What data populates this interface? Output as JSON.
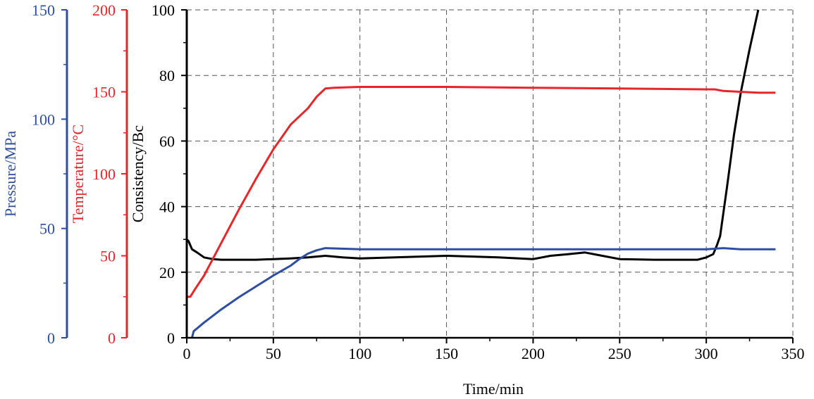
{
  "chart_data": {
    "type": "line",
    "xlabel": "Time/min",
    "xlim": [
      0,
      350
    ],
    "x_ticks": [
      "0",
      "50",
      "100",
      "150",
      "200",
      "250",
      "300",
      "350"
    ],
    "grid": true,
    "legend": "none",
    "axes": [
      {
        "id": "consistency",
        "label": "Consistency/Bc",
        "color": "#000000",
        "lim": [
          0,
          100
        ],
        "ticks": [
          "0",
          "20",
          "40",
          "60",
          "80",
          "100"
        ]
      },
      {
        "id": "temperature",
        "label": "Temperature/°C",
        "color": "#e8262a",
        "lim": [
          0,
          200
        ],
        "ticks": [
          "0",
          "50",
          "100",
          "150",
          "200"
        ]
      },
      {
        "id": "pressure",
        "label": "Pressure/MPa",
        "color": "#2d4ea3",
        "lim": [
          0,
          150
        ],
        "ticks": [
          "0",
          "50",
          "100",
          "150"
        ]
      }
    ],
    "series": [
      {
        "axis": "consistency",
        "color": "#000000",
        "points": [
          [
            0,
            30
          ],
          [
            1,
            29.5
          ],
          [
            3,
            27
          ],
          [
            6,
            26
          ],
          [
            10,
            24.5
          ],
          [
            15,
            24
          ],
          [
            20,
            23.8
          ],
          [
            30,
            23.8
          ],
          [
            40,
            23.8
          ],
          [
            50,
            24
          ],
          [
            60,
            24.2
          ],
          [
            70,
            24.5
          ],
          [
            80,
            25
          ],
          [
            90,
            24.5
          ],
          [
            100,
            24.2
          ],
          [
            120,
            24.5
          ],
          [
            150,
            25
          ],
          [
            180,
            24.5
          ],
          [
            200,
            24
          ],
          [
            210,
            25
          ],
          [
            220,
            25.5
          ],
          [
            230,
            26
          ],
          [
            240,
            25
          ],
          [
            250,
            24
          ],
          [
            270,
            23.8
          ],
          [
            295,
            23.8
          ],
          [
            300,
            24.5
          ],
          [
            304,
            25.5
          ],
          [
            306,
            28
          ],
          [
            308,
            31
          ],
          [
            312,
            46
          ],
          [
            316,
            62
          ],
          [
            320,
            75
          ],
          [
            325,
            88
          ],
          [
            330,
            100
          ]
        ]
      },
      {
        "axis": "temperature",
        "color": "#e8262a",
        "points": [
          [
            0,
            25
          ],
          [
            2,
            25
          ],
          [
            5,
            30
          ],
          [
            10,
            38
          ],
          [
            20,
            58
          ],
          [
            30,
            78
          ],
          [
            40,
            97
          ],
          [
            50,
            115
          ],
          [
            60,
            130
          ],
          [
            65,
            135
          ],
          [
            70,
            140
          ],
          [
            75,
            147
          ],
          [
            80,
            152
          ],
          [
            85,
            152.5
          ],
          [
            100,
            153
          ],
          [
            150,
            153
          ],
          [
            200,
            152.5
          ],
          [
            250,
            152
          ],
          [
            300,
            151.5
          ],
          [
            305,
            151.5
          ],
          [
            310,
            150.5
          ],
          [
            320,
            150
          ],
          [
            330,
            149.5
          ],
          [
            340,
            149.5
          ]
        ]
      },
      {
        "axis": "pressure",
        "color": "#2d4ea3",
        "points": [
          [
            3,
            0
          ],
          [
            4,
            3
          ],
          [
            10,
            7
          ],
          [
            20,
            13
          ],
          [
            30,
            18.5
          ],
          [
            40,
            23.5
          ],
          [
            50,
            28.5
          ],
          [
            60,
            33
          ],
          [
            65,
            36
          ],
          [
            70,
            38.5
          ],
          [
            75,
            40
          ],
          [
            80,
            41
          ],
          [
            100,
            40.5
          ],
          [
            150,
            40.5
          ],
          [
            200,
            40.5
          ],
          [
            250,
            40.5
          ],
          [
            300,
            40.5
          ],
          [
            310,
            41
          ],
          [
            320,
            40.5
          ],
          [
            340,
            40.5
          ]
        ]
      }
    ]
  }
}
